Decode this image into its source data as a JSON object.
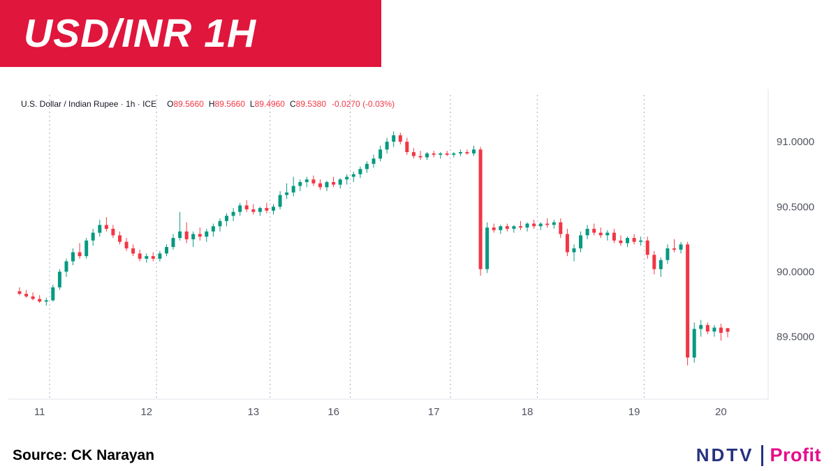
{
  "banner": {
    "title": "USD/INR 1H",
    "bg_color": "#e0163c"
  },
  "chart": {
    "symbol_info": "U.S. Dollar / Indian Rupee · 1h · ICE",
    "ohlc": {
      "o_label": "O",
      "o_value": "89.5660",
      "h_label": "H",
      "h_value": "89.5660",
      "l_label": "L",
      "l_value": "89.4960",
      "c_label": "C",
      "c_value": "89.5380",
      "change": "-0.0270 (-0.03%)"
    },
    "up_color": "#089981",
    "down_color": "#f23645",
    "grid_color": "#97a0b8",
    "axis_line_color": "#e0e3eb",
    "axis_text_color": "#50545e"
  },
  "chart_data": {
    "type": "candlestick",
    "title": "USD/INR 1H",
    "symbol": "U.S. Dollar / Indian Rupee",
    "interval": "1h",
    "exchange": "ICE",
    "ylim": [
      89.02,
      91.21
    ],
    "y_axis": {
      "labels": [
        "91.0000",
        "90.5000",
        "90.0000",
        "89.5000"
      ],
      "values": [
        91.0,
        90.5,
        90.0,
        89.5
      ]
    },
    "x_labels": [
      {
        "t": "11",
        "i": 3
      },
      {
        "t": "12",
        "i": 19
      },
      {
        "t": "13",
        "i": 35
      },
      {
        "t": "16",
        "i": 47
      },
      {
        "t": "17",
        "i": 62
      },
      {
        "t": "18",
        "i": 76
      },
      {
        "t": "19",
        "i": 92
      },
      {
        "t": "20",
        "i": 105
      }
    ],
    "day_separators": [
      5,
      21,
      38,
      50,
      65,
      78,
      94
    ],
    "ohlc_format": [
      "open",
      "high",
      "low",
      "close"
    ],
    "candles": [
      [
        89.85,
        89.88,
        89.82,
        89.83
      ],
      [
        89.83,
        89.86,
        89.8,
        89.81
      ],
      [
        89.81,
        89.84,
        89.78,
        89.79
      ],
      [
        89.79,
        89.82,
        89.76,
        89.77
      ],
      [
        89.77,
        89.8,
        89.74,
        89.78
      ],
      [
        89.78,
        89.9,
        89.77,
        89.88
      ],
      [
        89.88,
        90.02,
        89.86,
        90.0
      ],
      [
        90.0,
        90.1,
        89.96,
        90.08
      ],
      [
        90.08,
        90.18,
        90.05,
        90.15
      ],
      [
        90.15,
        90.22,
        90.1,
        90.12
      ],
      [
        90.12,
        90.26,
        90.1,
        90.24
      ],
      [
        90.24,
        90.33,
        90.2,
        90.3
      ],
      [
        90.3,
        90.4,
        90.27,
        90.36
      ],
      [
        90.36,
        90.42,
        90.31,
        90.33
      ],
      [
        90.33,
        90.36,
        90.26,
        90.28
      ],
      [
        90.28,
        90.31,
        90.21,
        90.23
      ],
      [
        90.23,
        90.26,
        90.16,
        90.18
      ],
      [
        90.18,
        90.21,
        90.12,
        90.14
      ],
      [
        90.14,
        90.17,
        90.08,
        90.1
      ],
      [
        90.1,
        90.14,
        90.07,
        90.12
      ],
      [
        90.12,
        90.15,
        90.08,
        90.1
      ],
      [
        90.1,
        90.16,
        90.08,
        90.14
      ],
      [
        90.14,
        90.21,
        90.12,
        90.19
      ],
      [
        90.19,
        90.29,
        90.17,
        90.26
      ],
      [
        90.26,
        90.46,
        90.24,
        90.31
      ],
      [
        90.31,
        90.38,
        90.22,
        90.25
      ],
      [
        90.25,
        90.31,
        90.19,
        90.29
      ],
      [
        90.29,
        90.34,
        90.24,
        90.27
      ],
      [
        90.27,
        90.33,
        90.23,
        90.31
      ],
      [
        90.31,
        90.37,
        90.27,
        90.35
      ],
      [
        90.35,
        90.41,
        90.31,
        90.39
      ],
      [
        90.39,
        90.45,
        90.35,
        90.43
      ],
      [
        90.43,
        90.49,
        90.39,
        90.46
      ],
      [
        90.46,
        90.53,
        90.43,
        90.51
      ],
      [
        90.51,
        90.55,
        90.46,
        90.48
      ],
      [
        90.48,
        90.52,
        90.44,
        90.46
      ],
      [
        90.46,
        90.5,
        90.43,
        90.49
      ],
      [
        90.49,
        90.53,
        90.45,
        90.47
      ],
      [
        90.47,
        90.52,
        90.44,
        90.5
      ],
      [
        90.5,
        90.62,
        90.48,
        90.59
      ],
      [
        90.59,
        90.68,
        90.56,
        90.61
      ],
      [
        90.61,
        90.73,
        90.58,
        90.66
      ],
      [
        90.66,
        90.71,
        90.62,
        90.69
      ],
      [
        90.69,
        90.73,
        90.65,
        90.71
      ],
      [
        90.71,
        90.74,
        90.66,
        90.68
      ],
      [
        90.68,
        90.71,
        90.63,
        90.65
      ],
      [
        90.65,
        90.7,
        90.62,
        90.69
      ],
      [
        90.69,
        90.73,
        90.65,
        90.67
      ],
      [
        90.67,
        90.72,
        90.64,
        90.71
      ],
      [
        90.71,
        90.75,
        90.67,
        90.73
      ],
      [
        90.73,
        90.77,
        90.69,
        90.75
      ],
      [
        90.75,
        90.81,
        90.72,
        90.79
      ],
      [
        90.79,
        90.85,
        90.76,
        90.83
      ],
      [
        90.83,
        90.9,
        90.8,
        90.87
      ],
      [
        90.87,
        90.97,
        90.85,
        90.94
      ],
      [
        90.94,
        91.03,
        90.91,
        91.0
      ],
      [
        91.0,
        91.08,
        90.96,
        91.05
      ],
      [
        91.05,
        91.07,
        90.98,
        91.0
      ],
      [
        91.0,
        91.03,
        90.9,
        90.92
      ],
      [
        90.92,
        90.95,
        90.87,
        90.89
      ],
      [
        90.89,
        90.93,
        90.86,
        90.88
      ],
      [
        90.88,
        90.92,
        90.86,
        90.91
      ],
      [
        90.91,
        90.93,
        90.88,
        90.9
      ],
      [
        90.9,
        90.92,
        90.87,
        90.91
      ],
      [
        90.91,
        90.93,
        90.89,
        90.9
      ],
      [
        90.9,
        90.92,
        90.88,
        90.91
      ],
      [
        90.91,
        90.94,
        90.89,
        90.92
      ],
      [
        90.92,
        90.94,
        90.9,
        90.91
      ],
      [
        90.91,
        90.97,
        90.89,
        90.94
      ],
      [
        90.94,
        90.96,
        89.97,
        90.02
      ],
      [
        90.02,
        90.38,
        89.99,
        90.34
      ],
      [
        90.34,
        90.37,
        90.3,
        90.32
      ],
      [
        90.32,
        90.36,
        90.29,
        90.35
      ],
      [
        90.35,
        90.37,
        90.31,
        90.33
      ],
      [
        90.33,
        90.36,
        90.3,
        90.35
      ],
      [
        90.35,
        90.39,
        90.32,
        90.34
      ],
      [
        90.34,
        90.38,
        90.31,
        90.37
      ],
      [
        90.37,
        90.4,
        90.33,
        90.35
      ],
      [
        90.35,
        90.38,
        90.32,
        90.37
      ],
      [
        90.37,
        90.41,
        90.34,
        90.36
      ],
      [
        90.36,
        90.4,
        90.33,
        90.38
      ],
      [
        90.38,
        90.41,
        90.26,
        90.29
      ],
      [
        90.29,
        90.33,
        90.12,
        90.15
      ],
      [
        90.15,
        90.21,
        90.08,
        90.18
      ],
      [
        90.18,
        90.31,
        90.15,
        90.28
      ],
      [
        90.28,
        90.36,
        90.25,
        90.33
      ],
      [
        90.33,
        90.37,
        90.28,
        90.3
      ],
      [
        90.3,
        90.34,
        90.26,
        90.28
      ],
      [
        90.28,
        90.32,
        90.24,
        90.3
      ],
      [
        90.3,
        90.33,
        90.22,
        90.24
      ],
      [
        90.24,
        90.28,
        90.2,
        90.22
      ],
      [
        90.22,
        90.27,
        90.19,
        90.26
      ],
      [
        90.26,
        90.29,
        90.21,
        90.23
      ],
      [
        90.23,
        90.27,
        90.2,
        90.24
      ],
      [
        90.24,
        90.27,
        90.1,
        90.13
      ],
      [
        90.13,
        90.16,
        89.98,
        90.02
      ],
      [
        90.02,
        90.11,
        89.96,
        90.09
      ],
      [
        90.09,
        90.21,
        90.06,
        90.18
      ],
      [
        90.18,
        90.25,
        90.15,
        90.17
      ],
      [
        90.17,
        90.23,
        90.14,
        90.21
      ],
      [
        90.21,
        90.23,
        89.28,
        89.34
      ],
      [
        89.34,
        89.61,
        89.3,
        89.56
      ],
      [
        89.56,
        89.63,
        89.5,
        89.59
      ],
      [
        89.59,
        89.61,
        89.52,
        89.54
      ],
      [
        89.54,
        89.59,
        89.5,
        89.57
      ],
      [
        89.57,
        89.6,
        89.47,
        89.53
      ],
      [
        89.566,
        89.566,
        89.496,
        89.538
      ]
    ]
  },
  "footer": {
    "source": "Source: CK Narayan",
    "logo": {
      "ndtv": "NDTV",
      "profit": "Profit",
      "ndtv_color": "#27317e",
      "profit_color": "#e60c8a"
    }
  }
}
